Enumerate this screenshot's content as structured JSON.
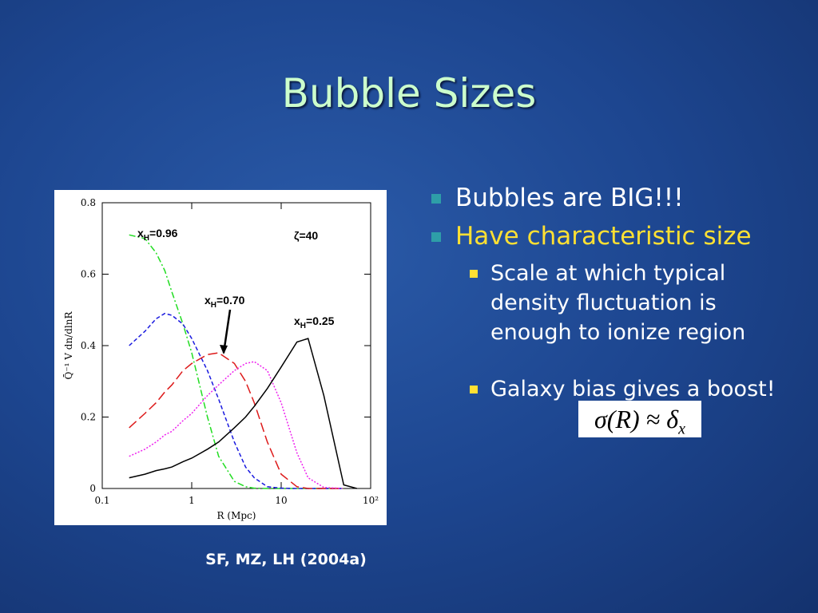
{
  "title": "Bubble Sizes",
  "bullets": [
    {
      "text": "Bubbles are BIG!!!",
      "level": 1
    },
    {
      "text": "Have characteristic size",
      "level": 1
    },
    {
      "text": "Scale at which typical density fluctuation is enough to ionize region",
      "level": 2
    },
    {
      "text": "Galaxy bias gives a boost!",
      "level": 2
    }
  ],
  "formula": {
    "main": "σ(R) ≈ δ",
    "sub": "x"
  },
  "caption": "SF, MZ, LH (2004a)",
  "chart_data": {
    "type": "line",
    "x_label": "R (Mpc)",
    "y_label": "Q̄⁻¹ V dn/dlnR",
    "xscale": "log",
    "xlim": [
      0.1,
      100
    ],
    "ylim": [
      0,
      0.8
    ],
    "xticks": [
      0.1,
      1,
      10,
      {
        "value": 100,
        "label": "10²"
      }
    ],
    "yticks": [
      0,
      0.2,
      0.4,
      0.6,
      0.8
    ],
    "x": [
      0.2,
      0.3,
      0.4,
      0.5,
      0.6,
      0.8,
      1,
      1.5,
      2,
      3,
      4,
      5,
      7,
      10,
      15,
      20,
      30,
      50,
      70,
      100
    ],
    "series": [
      {
        "color": "#22dd22",
        "dash": "8,3,2,3",
        "values": [
          0.71,
          0.7,
          0.66,
          0.61,
          0.55,
          0.46,
          0.38,
          0.2,
          0.09,
          0.02,
          0.005,
          0.001,
          0,
          0,
          0,
          0,
          0,
          0,
          null,
          null
        ]
      },
      {
        "color": "#1a1adf",
        "dash": "5,3",
        "values": [
          0.4,
          0.44,
          0.475,
          0.49,
          0.485,
          0.46,
          0.42,
          0.33,
          0.25,
          0.13,
          0.06,
          0.03,
          0.005,
          0.001,
          0,
          0,
          0,
          0,
          null,
          null
        ]
      },
      {
        "color": "#dd1a1a",
        "dash": "12,5",
        "values": [
          0.17,
          0.21,
          0.24,
          0.27,
          0.29,
          0.33,
          0.35,
          0.375,
          0.38,
          0.35,
          0.3,
          0.24,
          0.13,
          0.04,
          0.005,
          0,
          0,
          0,
          null,
          null
        ]
      },
      {
        "color": "#ee22ee",
        "dash": "2,2",
        "values": [
          0.09,
          0.11,
          0.13,
          0.15,
          0.16,
          0.19,
          0.21,
          0.26,
          0.29,
          0.33,
          0.35,
          0.355,
          0.33,
          0.24,
          0.1,
          0.03,
          0.003,
          0,
          null,
          null
        ]
      },
      {
        "color": "#000000",
        "dash": "",
        "values": [
          0.03,
          0.04,
          0.05,
          0.055,
          0.06,
          0.075,
          0.085,
          0.11,
          0.13,
          0.17,
          0.2,
          0.23,
          0.28,
          0.34,
          0.41,
          0.42,
          0.26,
          0.01,
          0,
          null
        ]
      }
    ],
    "annotations": [
      {
        "base": "x",
        "sub": "H",
        "text": "=0.96"
      },
      {
        "base": "x",
        "sub": "H",
        "text": "=0.70"
      },
      {
        "base": "x",
        "sub": "H",
        "text": "=0.25"
      },
      {
        "text": "ζ=40"
      }
    ]
  }
}
